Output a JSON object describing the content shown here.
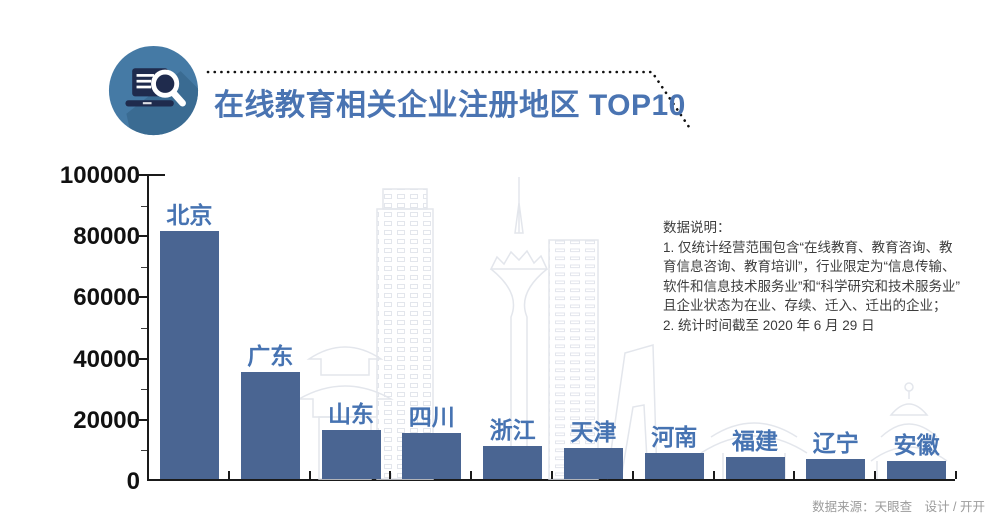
{
  "header": {
    "title": "在线教育相关企业注册地区 TOP10",
    "icon": "laptop-magnifier-badge",
    "title_color": "#4a74b2"
  },
  "chart_data": {
    "type": "bar",
    "title": "在线教育相关企业注册地区 TOP10",
    "categories": [
      "北京",
      "广东",
      "山东",
      "四川",
      "浙江",
      "天津",
      "河南",
      "福建",
      "辽宁",
      "安徽"
    ],
    "values": [
      81000,
      35000,
      16000,
      15000,
      10700,
      10000,
      8500,
      7100,
      6500,
      5800
    ],
    "xlabel": "",
    "ylabel": "",
    "ylim": [
      0,
      100000
    ],
    "yticks": [
      0,
      20000,
      40000,
      60000,
      80000,
      100000
    ],
    "minor_tick_step": 10000,
    "grid": false,
    "legend": null,
    "bar_color": "#4a6592",
    "label_color": "#4673b2",
    "axis_color": "#1a1a1a"
  },
  "notes": {
    "heading": "数据说明：",
    "lines": [
      "1. 仅统计经营范围包含“在线教育、教育咨询、教",
      "育信息咨询、教育培训”，行业限定为“信息传输、",
      "软件和信息技术服务业”和“科学研究和技术服务业”",
      "且企业状态为在业、存续、迁入、迁出的企业；",
      "2. 统计时间截至 2020 年 6 月 29 日"
    ]
  },
  "footer": {
    "credit": "数据来源：天眼查　设计 / 开开"
  }
}
